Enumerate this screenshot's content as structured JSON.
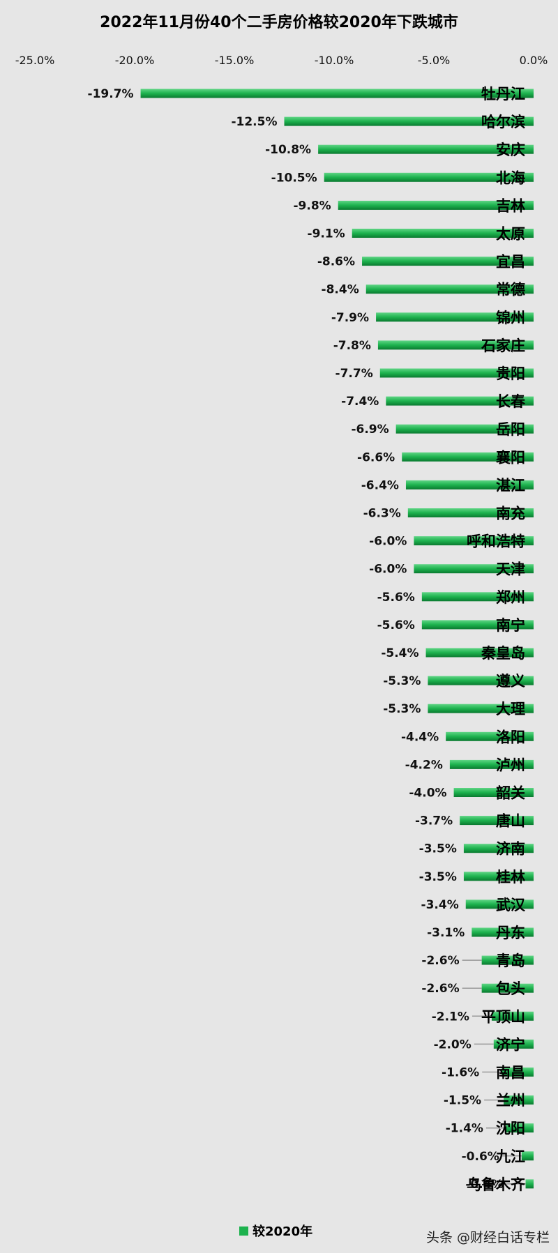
{
  "watermark": "头条 @财经白话专栏",
  "colors": {
    "bar": "#1db24e",
    "bar_top": "#5fd585",
    "bar_bottom": "#0a7a30",
    "background": "#e6e6e6"
  },
  "chart_data": {
    "type": "bar",
    "orientation": "horizontal",
    "title": "2022年11月份40个二手房价格较2020年下跌城市",
    "xlabel": "",
    "ylabel": "",
    "xlim": [
      -25,
      0
    ],
    "ticks": [
      -25,
      -20,
      -15,
      -10,
      -5,
      0
    ],
    "tick_labels": [
      "-25.0%",
      "-20.0%",
      "-15.0%",
      "-10.0%",
      "-5.0%",
      "0.0%"
    ],
    "axis_position": "top",
    "grid": false,
    "legend_position": "bottom",
    "categories": [
      "牡丹江",
      "哈尔滨",
      "安庆",
      "北海",
      "吉林",
      "太原",
      "宜昌",
      "常德",
      "锦州",
      "石家庄",
      "贵阳",
      "长春",
      "岳阳",
      "襄阳",
      "湛江",
      "南充",
      "呼和浩特",
      "天津",
      "郑州",
      "南宁",
      "秦皇岛",
      "遵义",
      "大理",
      "洛阳",
      "泸州",
      "韶关",
      "唐山",
      "济南",
      "桂林",
      "武汉",
      "丹东",
      "青岛",
      "包头",
      "平顶山",
      "济宁",
      "南昌",
      "兰州",
      "沈阳",
      "九江",
      "乌鲁木齐"
    ],
    "series": [
      {
        "name": "较2020年",
        "values": [
          -19.7,
          -12.5,
          -10.8,
          -10.5,
          -9.8,
          -9.1,
          -8.6,
          -8.4,
          -7.9,
          -7.8,
          -7.7,
          -7.4,
          -6.9,
          -6.6,
          -6.4,
          -6.3,
          -6.0,
          -6.0,
          -5.6,
          -5.6,
          -5.4,
          -5.3,
          -5.3,
          -4.4,
          -4.2,
          -4.0,
          -3.7,
          -3.5,
          -3.5,
          -3.4,
          -3.1,
          -2.6,
          -2.6,
          -2.1,
          -2.0,
          -1.6,
          -1.5,
          -1.4,
          -0.6,
          -0.4
        ],
        "labels": [
          "-19.7%",
          "-12.5%",
          "-10.8%",
          "-10.5%",
          "-9.8%",
          "-9.1%",
          "-8.6%",
          "-8.4%",
          "-7.9%",
          "-7.8%",
          "-7.7%",
          "-7.4%",
          "-6.9%",
          "-6.6%",
          "-6.4%",
          "-6.3%",
          "-6.0%",
          "-6.0%",
          "-5.6%",
          "-5.6%",
          "-5.4%",
          "-5.3%",
          "-5.3%",
          "-4.4%",
          "-4.2%",
          "-4.0%",
          "-3.7%",
          "-3.5%",
          "-3.5%",
          "-3.4%",
          "-3.1%",
          "-2.6%",
          "-2.6%",
          "-2.1%",
          "-2.0%",
          "-1.6%",
          "-1.5%",
          "-1.4%",
          "-0.6%",
          "-0.4%"
        ]
      }
    ]
  }
}
